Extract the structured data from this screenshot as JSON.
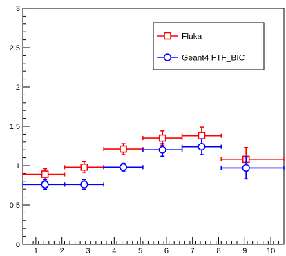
{
  "chart_data": {
    "type": "scatter",
    "title": "",
    "xlabel": "",
    "ylabel": "",
    "xlim": [
      0.5,
      10.5
    ],
    "ylim": [
      0,
      3
    ],
    "x_ticks": [
      1,
      2,
      3,
      4,
      5,
      6,
      7,
      8,
      9,
      10
    ],
    "y_ticks": [
      0,
      0.5,
      1,
      1.5,
      2,
      2.5,
      3
    ],
    "y_tick_labels": [
      "0",
      "0.5",
      "1",
      "1.5",
      "2",
      "2.5",
      "3"
    ],
    "grid": false,
    "legend": {
      "placement": "top-right",
      "entries": [
        "Fluka",
        "Geant4 FTF_BIC"
      ]
    },
    "series": [
      {
        "name": "Fluka",
        "color": "#ff0000",
        "marker": "open-square",
        "points": [
          {
            "x": 1.35,
            "xlo": 0.5,
            "xhi": 2.1,
            "y": 0.89,
            "yerr": 0.07
          },
          {
            "x": 2.85,
            "xlo": 2.1,
            "xhi": 3.6,
            "y": 0.98,
            "yerr": 0.07
          },
          {
            "x": 4.35,
            "xlo": 3.6,
            "xhi": 5.1,
            "y": 1.21,
            "yerr": 0.07
          },
          {
            "x": 5.85,
            "xlo": 5.1,
            "xhi": 6.6,
            "y": 1.35,
            "yerr": 0.09
          },
          {
            "x": 7.35,
            "xlo": 6.6,
            "xhi": 8.1,
            "y": 1.38,
            "yerr": 0.11
          },
          {
            "x": 9.05,
            "xlo": 8.1,
            "xhi": 10.5,
            "y": 1.08,
            "yerr": 0.15
          }
        ]
      },
      {
        "name": "Geant4 FTF_BIC",
        "color": "#0000ff",
        "marker": "open-circle",
        "points": [
          {
            "x": 1.35,
            "xlo": 0.5,
            "xhi": 2.1,
            "y": 0.76,
            "yerr": 0.06
          },
          {
            "x": 2.85,
            "xlo": 2.1,
            "xhi": 3.6,
            "y": 0.76,
            "yerr": 0.06
          },
          {
            "x": 4.35,
            "xlo": 3.6,
            "xhi": 5.1,
            "y": 0.98,
            "yerr": 0.05
          },
          {
            "x": 5.85,
            "xlo": 5.1,
            "xhi": 6.6,
            "y": 1.2,
            "yerr": 0.08
          },
          {
            "x": 7.35,
            "xlo": 6.6,
            "xhi": 8.1,
            "y": 1.24,
            "yerr": 0.1
          },
          {
            "x": 9.05,
            "xlo": 8.1,
            "xhi": 10.5,
            "y": 0.97,
            "yerr": 0.14
          }
        ]
      }
    ]
  }
}
